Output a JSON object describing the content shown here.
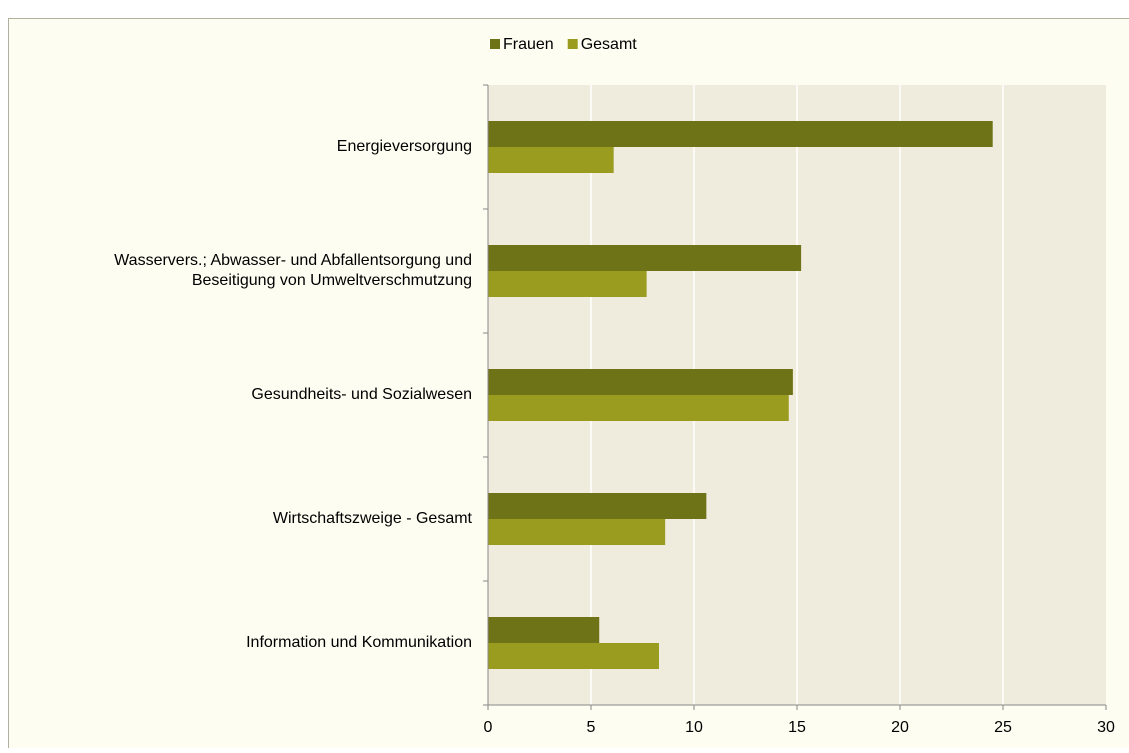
{
  "chart_data": {
    "type": "bar",
    "orientation": "horizontal",
    "categories": [
      "Energieversorgung",
      "Wasservers.; Abwasser- und Abfallentsorgung und\nBeseitigung von Umweltverschmutzung",
      "Gesundheits- und Sozialwesen",
      "Wirtschaftszweige - Gesamt",
      "Information und Kommunikation"
    ],
    "series": [
      {
        "name": "Frauen",
        "color": "#6f7318",
        "values": [
          24.5,
          15.2,
          14.8,
          10.6,
          5.4
        ]
      },
      {
        "name": "Gesamt",
        "color": "#9a9c1f",
        "values": [
          6.1,
          7.7,
          14.6,
          8.6,
          8.3
        ]
      }
    ],
    "xlim": [
      0,
      30
    ],
    "xticks": [
      0,
      5,
      10,
      15,
      20,
      25,
      30
    ],
    "grid": true,
    "legend": "top"
  }
}
